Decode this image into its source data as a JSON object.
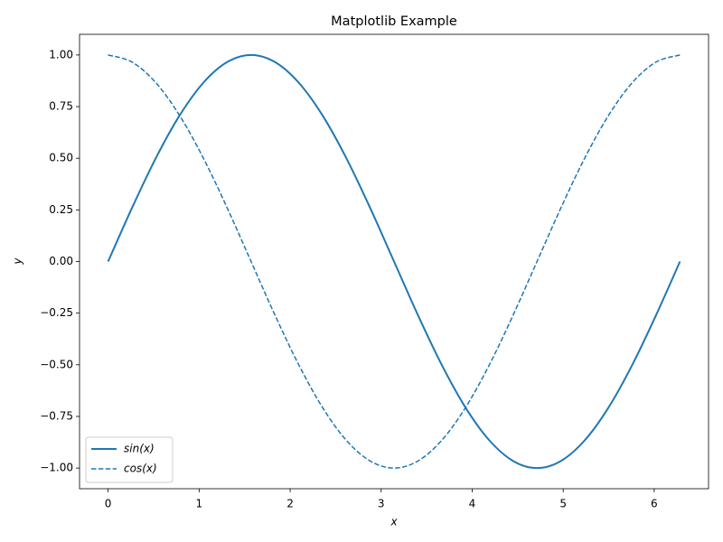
{
  "chart_data": {
    "type": "line",
    "title": "Matplotlib Example",
    "x_label": "x",
    "y_label": "y",
    "x": [
      0,
      0.2618,
      0.5236,
      0.7854,
      1.0472,
      1.309,
      1.5708,
      1.8326,
      2.0944,
      2.3562,
      2.618,
      2.8798,
      3.1416,
      3.4034,
      3.6652,
      3.927,
      4.1888,
      4.4506,
      4.7124,
      4.9742,
      5.236,
      5.4978,
      5.7596,
      6.0214,
      6.2832
    ],
    "series": [
      {
        "name": "sin(x)",
        "color": "#1f77b4",
        "linestyle": "solid",
        "linewidth": 2,
        "values": [
          0,
          0.2588,
          0.5,
          0.7071,
          0.866,
          0.9659,
          1,
          0.9659,
          0.866,
          0.7071,
          0.5,
          0.2588,
          0,
          -0.2588,
          -0.5,
          -0.7071,
          -0.866,
          -0.9659,
          -1,
          -0.9659,
          -0.866,
          -0.7071,
          -0.5,
          -0.2588,
          0
        ]
      },
      {
        "name": "cos(x)",
        "color": "#1f77b4",
        "linestyle": "dashed",
        "linewidth": 1.5,
        "values": [
          1,
          0.9659,
          0.866,
          0.7071,
          0.5,
          0.2588,
          0,
          -0.2588,
          -0.5,
          -0.7071,
          -0.866,
          -0.9659,
          -1,
          -0.9659,
          -0.866,
          -0.7071,
          -0.5,
          -0.2588,
          0,
          0.2588,
          0.5,
          0.7071,
          0.866,
          0.9659,
          1
        ]
      }
    ],
    "xlim": [
      -0.314,
      6.597
    ],
    "ylim": [
      -1.1,
      1.1
    ],
    "xticks": [
      0,
      1,
      2,
      3,
      4,
      5,
      6
    ],
    "yticks": [
      {
        "value": -1,
        "label": "−1.00"
      },
      {
        "value": -0.75,
        "label": "−0.75"
      },
      {
        "value": -0.5,
        "label": "−0.50"
      },
      {
        "value": -0.25,
        "label": "−0.25"
      },
      {
        "value": 0,
        "label": "0.00"
      },
      {
        "value": 0.25,
        "label": "0.25"
      },
      {
        "value": 0.5,
        "label": "0.50"
      },
      {
        "value": 0.75,
        "label": "0.75"
      },
      {
        "value": 1,
        "label": "1.00"
      }
    ],
    "legend": "lower left",
    "grid": false
  }
}
